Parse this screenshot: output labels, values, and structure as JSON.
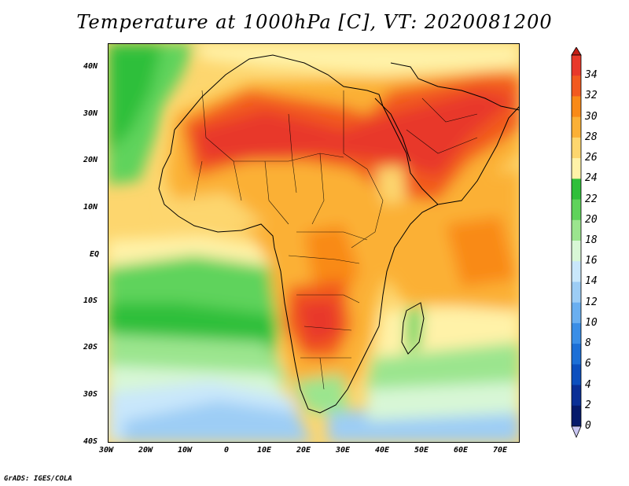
{
  "title": "Temperature at 1000hPa [C], VT: 2020081200",
  "credit": "GrADS: IGES/COLA",
  "map": {
    "region": "Africa",
    "lat_range": [
      -40,
      45
    ],
    "lon_range": [
      -30,
      75
    ],
    "lat_ticks": [
      "40N",
      "30N",
      "20N",
      "10N",
      "EQ",
      "10S",
      "20S",
      "30S",
      "40S"
    ],
    "lon_ticks": [
      "30W",
      "20W",
      "10W",
      "0",
      "10E",
      "20E",
      "30E",
      "40E",
      "50E",
      "60E",
      "70E"
    ]
  },
  "colorbar": {
    "levels": [
      "34",
      "32",
      "30",
      "28",
      "26",
      "24",
      "22",
      "20",
      "18",
      "16",
      "14",
      "12",
      "10",
      "8",
      "6",
      "4",
      "2",
      "0"
    ],
    "colors": [
      "#e8392a",
      "#f25a1f",
      "#f98a18",
      "#fbb036",
      "#fdd66e",
      "#fff2a8",
      "#2fbf3a",
      "#5fd35b",
      "#9be58e",
      "#d8f7d6",
      "#c9e7fb",
      "#9dcdf5",
      "#6aaff0",
      "#3a8ee6",
      "#1c6fd6",
      "#0c4fbe",
      "#0a2f96",
      "#061a6b"
    ],
    "top_arrow_color": "#c41e16",
    "bottom_arrow_color": "#c9c6f2"
  }
}
